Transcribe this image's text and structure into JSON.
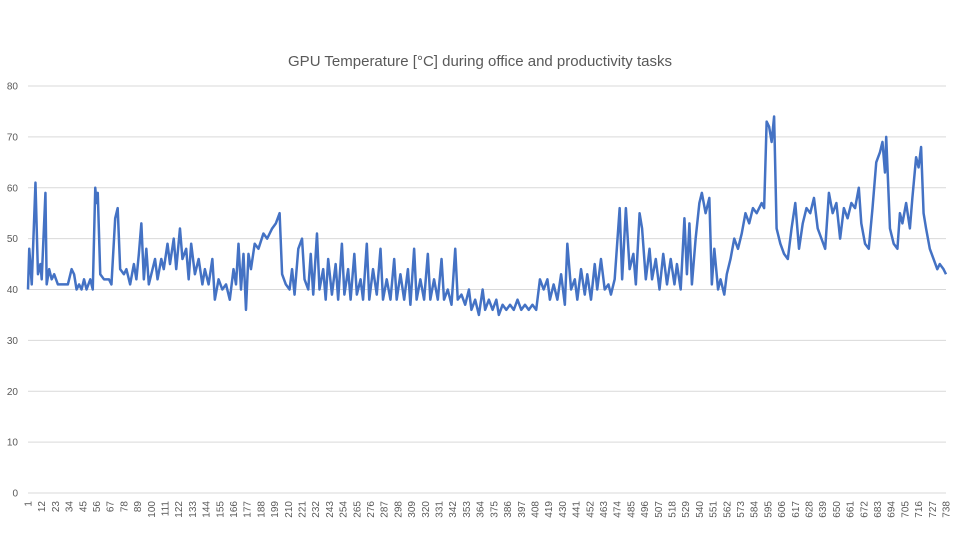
{
  "chart_data": {
    "type": "line",
    "title": "GPU Temperature [°C] during office and productivity tasks",
    "color": "#4472c4",
    "x": [
      1,
      2,
      4,
      7,
      9,
      11,
      12,
      15,
      16,
      18,
      20,
      22,
      25,
      33,
      36,
      38,
      40,
      42,
      44,
      46,
      48,
      51,
      53,
      55,
      56,
      57,
      59,
      62,
      66,
      68,
      71,
      73,
      75,
      78,
      80,
      83,
      86,
      88,
      90,
      92,
      94,
      96,
      98,
      100,
      103,
      105,
      108,
      110,
      113,
      115,
      118,
      120,
      123,
      125,
      128,
      130,
      132,
      135,
      138,
      141,
      143,
      146,
      149,
      151,
      154,
      157,
      160,
      163,
      166,
      168,
      170,
      172,
      174,
      176,
      178,
      180,
      183,
      186,
      190,
      193,
      197,
      200,
      203,
      205,
      208,
      211,
      213,
      215,
      218,
      221,
      223,
      226,
      228,
      230,
      233,
      235,
      238,
      240,
      242,
      245,
      248,
      250,
      253,
      255,
      258,
      260,
      263,
      265,
      268,
      270,
      273,
      275,
      278,
      281,
      284,
      286,
      289,
      292,
      295,
      297,
      300,
      303,
      306,
      308,
      311,
      313,
      316,
      319,
      322,
      324,
      327,
      330,
      333,
      335,
      338,
      341,
      344,
      346,
      349,
      352,
      355,
      357,
      360,
      363,
      366,
      368,
      371,
      374,
      377,
      379,
      382,
      385,
      388,
      391,
      394,
      397,
      400,
      403,
      406,
      409,
      412,
      415,
      418,
      420,
      423,
      426,
      429,
      432,
      434,
      437,
      440,
      442,
      445,
      448,
      450,
      453,
      456,
      458,
      461,
      464,
      467,
      469,
      472,
      476,
      478,
      481,
      484,
      487,
      489,
      492,
      494,
      497,
      500,
      502,
      505,
      508,
      511,
      514,
      517,
      520,
      522,
      525,
      528,
      530,
      532,
      534,
      537,
      540,
      542,
      545,
      548,
      550,
      552,
      555,
      557,
      560,
      562,
      565,
      568,
      571,
      574,
      577,
      580,
      583,
      586,
      590,
      592,
      594,
      596,
      598,
      600,
      602,
      605,
      608,
      611,
      614,
      617,
      620,
      623,
      626,
      629,
      632,
      635,
      638,
      641,
      644,
      647,
      650,
      653,
      656,
      659,
      662,
      665,
      668,
      670,
      673,
      676,
      679,
      682,
      685,
      687,
      689,
      690,
      693,
      696,
      699,
      701,
      703,
      706,
      709,
      711,
      714,
      716,
      718,
      720,
      722,
      725,
      728,
      731,
      733,
      736,
      738
    ],
    "values": [
      40,
      48,
      41,
      61,
      43,
      45,
      42,
      59,
      41,
      44,
      42,
      43,
      41,
      41,
      44,
      43,
      40,
      41,
      40,
      42,
      40,
      42,
      40,
      60,
      57,
      59,
      43,
      42,
      42,
      41,
      54,
      56,
      44,
      43,
      44,
      41,
      45,
      42,
      47,
      53,
      42,
      48,
      41,
      43,
      46,
      42,
      46,
      44,
      49,
      45,
      50,
      44,
      52,
      46,
      48,
      42,
      49,
      43,
      46,
      41,
      44,
      41,
      46,
      38,
      42,
      40,
      41,
      38,
      44,
      41,
      49,
      40,
      47,
      36,
      47,
      44,
      49,
      48,
      51,
      50,
      52,
      53,
      55,
      43,
      41,
      40,
      44,
      39,
      48,
      50,
      42,
      40,
      47,
      39,
      51,
      40,
      44,
      38,
      46,
      39,
      45,
      38,
      49,
      39,
      44,
      38,
      47,
      39,
      42,
      38,
      49,
      38,
      44,
      39,
      48,
      38,
      42,
      38,
      46,
      38,
      43,
      38,
      44,
      37,
      48,
      38,
      42,
      38,
      47,
      38,
      42,
      38,
      46,
      38,
      40,
      37,
      48,
      38,
      39,
      37,
      40,
      36,
      38,
      35,
      40,
      36,
      38,
      36,
      38,
      35,
      37,
      36,
      37,
      36,
      38,
      36,
      37,
      36,
      37,
      36,
      42,
      40,
      42,
      38,
      41,
      38,
      43,
      37,
      49,
      40,
      42,
      38,
      44,
      39,
      43,
      38,
      45,
      40,
      46,
      40,
      41,
      39,
      42,
      56,
      42,
      56,
      44,
      47,
      41,
      55,
      52,
      42,
      48,
      42,
      46,
      40,
      47,
      41,
      46,
      41,
      45,
      40,
      54,
      43,
      53,
      41,
      50,
      57,
      59,
      55,
      58,
      41,
      48,
      40,
      42,
      39,
      43,
      46,
      50,
      48,
      51,
      55,
      53,
      56,
      55,
      57,
      56,
      73,
      72,
      69,
      74,
      52,
      49,
      47,
      46,
      52,
      57,
      48,
      53,
      56,
      55,
      58,
      52,
      50,
      48,
      59,
      55,
      57,
      50,
      56,
      54,
      57,
      56,
      60,
      53,
      49,
      48,
      56,
      65,
      67,
      69,
      63,
      70,
      52,
      49,
      48,
      55,
      53,
      57,
      52,
      58,
      66,
      64,
      68,
      55,
      52,
      48,
      46,
      44,
      45,
      44,
      43
    ],
    "xlim": [
      1,
      738
    ],
    "xticks": [
      1,
      12,
      23,
      34,
      45,
      56,
      67,
      78,
      89,
      100,
      111,
      122,
      133,
      144,
      155,
      166,
      177,
      188,
      199,
      210,
      221,
      232,
      243,
      254,
      265,
      276,
      287,
      298,
      309,
      320,
      331,
      342,
      353,
      364,
      375,
      386,
      397,
      408,
      419,
      430,
      441,
      452,
      463,
      474,
      485,
      496,
      507,
      518,
      529,
      540,
      551,
      562,
      573,
      584,
      595,
      606,
      617,
      628,
      639,
      650,
      661,
      672,
      683,
      694,
      705,
      716,
      727,
      738
    ],
    "ylim": [
      0,
      80
    ],
    "yticks": [
      0,
      10,
      20,
      30,
      40,
      50,
      60,
      70,
      80
    ],
    "grid": true
  }
}
